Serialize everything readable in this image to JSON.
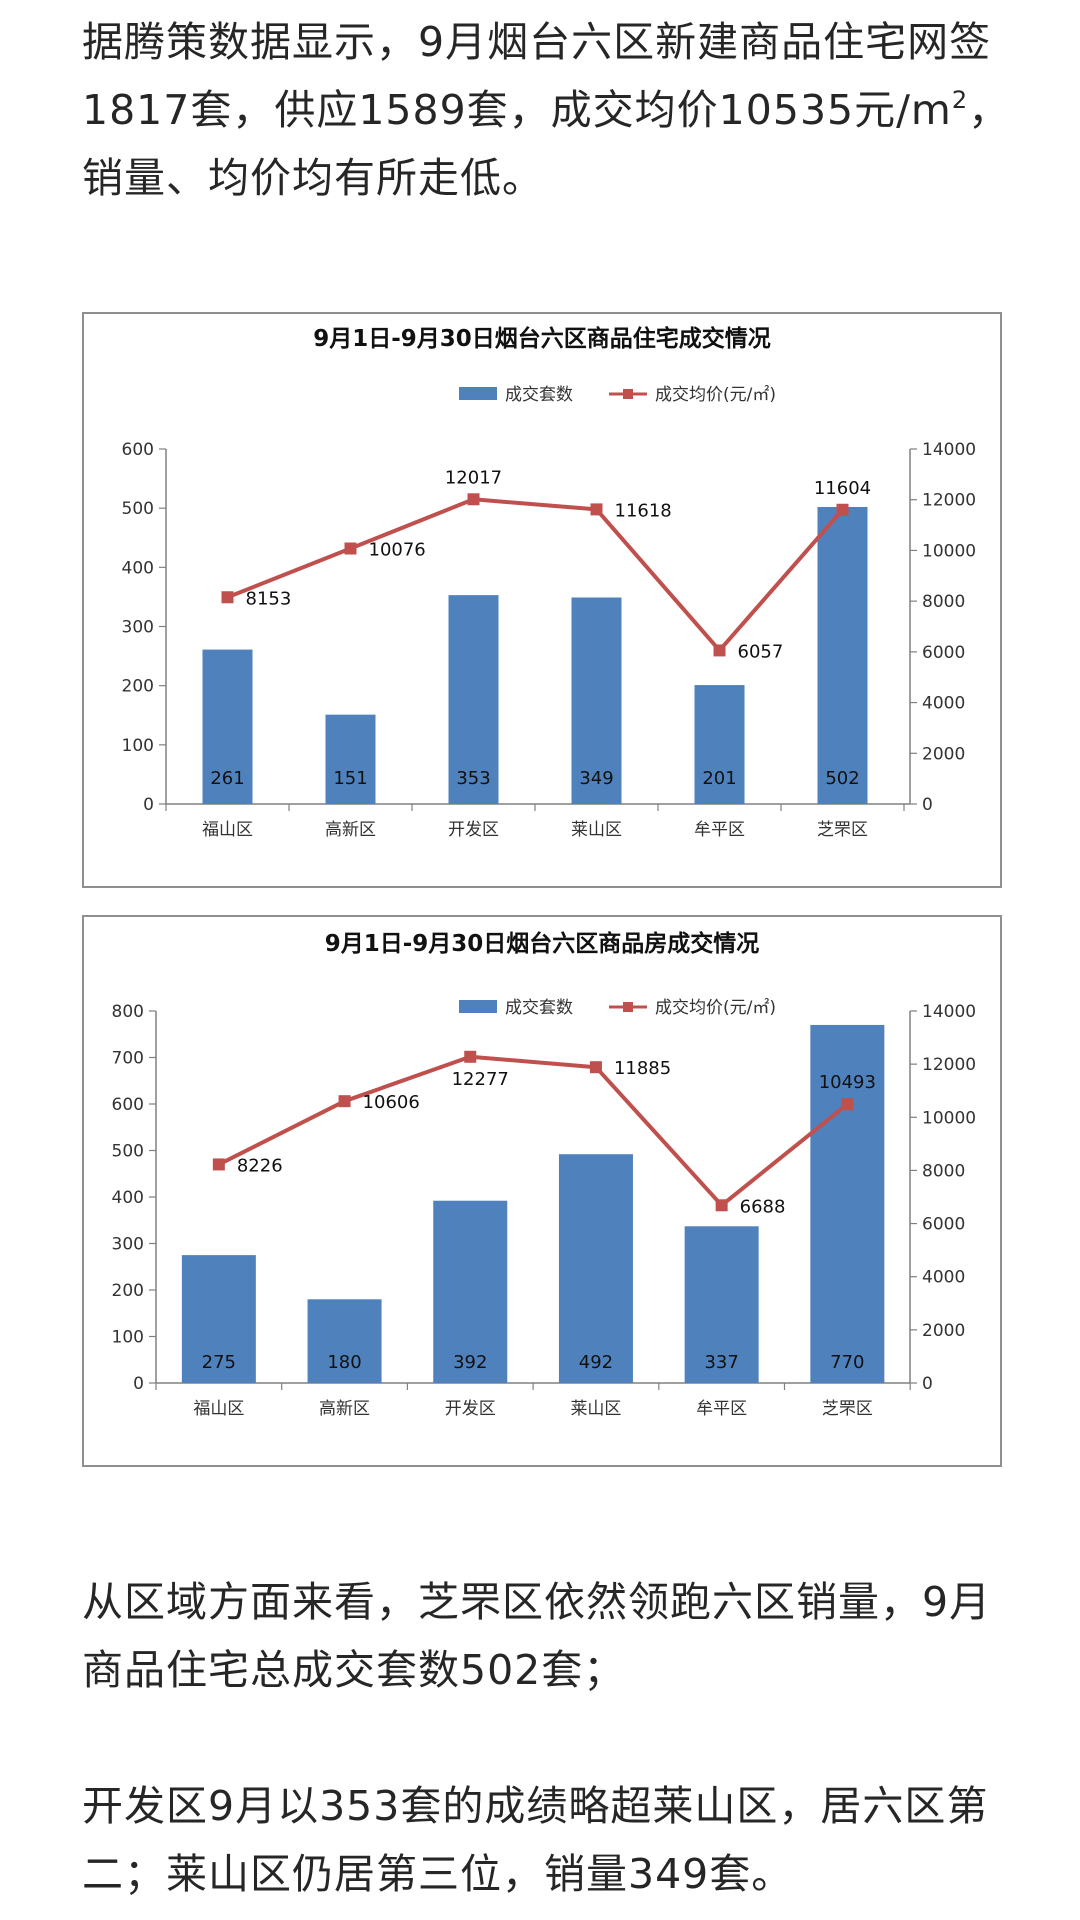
{
  "paragraphs": {
    "p1_main": "据腾策数据显示，9月烟台六区新建商品住宅网签1817套，供应1589套，成交均价10535元/m",
    "p1_sup": "2",
    "p1_tail": "，销量、均价均有所走低。",
    "p2": "从区域方面来看，芝罘区依然领跑六区销量，9月商品住宅总成交套数502套；",
    "p3": "开发区9月以353套的成绩略超莱山区，居六区第二；莱山区仍居第三位，销量349套。"
  },
  "chart_data": [
    {
      "type": "bar",
      "title": "9月1日-9月30日烟台六区商品住宅成交情况",
      "categories": [
        "福山区",
        "高新区",
        "开发区",
        "莱山区",
        "牟平区",
        "芝罘区"
      ],
      "series": [
        {
          "name": "成交套数",
          "type": "bar",
          "axis": "left",
          "color": "#4F81BD",
          "values": [
            261,
            151,
            353,
            349,
            201,
            502
          ],
          "labels": [
            "261",
            "151",
            "353",
            "349",
            "201",
            "502"
          ]
        },
        {
          "name": "成交均价(元/㎡)",
          "type": "line",
          "axis": "right",
          "color": "#C0504D",
          "values": [
            8153,
            10076,
            12017,
            11618,
            6057,
            11604
          ],
          "labels": [
            "8153",
            "10076",
            "12017",
            "11618",
            "6057",
            "11604"
          ]
        }
      ],
      "y_left": {
        "min": 0,
        "max": 600,
        "ticks": [
          "0",
          "100",
          "200",
          "300",
          "400",
          "500",
          "600"
        ]
      },
      "y_right": {
        "min": 0,
        "max": 14000,
        "ticks": [
          "0",
          "2000",
          "4000",
          "6000",
          "8000",
          "10000",
          "12000",
          "14000"
        ]
      },
      "legend": "top-center",
      "grid": false
    },
    {
      "type": "bar",
      "title": "9月1日-9月30日烟台六区商品房成交情况",
      "categories": [
        "福山区",
        "高新区",
        "开发区",
        "莱山区",
        "牟平区",
        "芝罘区"
      ],
      "series": [
        {
          "name": "成交套数",
          "type": "bar",
          "axis": "left",
          "color": "#4F81BD",
          "values": [
            275,
            180,
            392,
            492,
            337,
            770
          ],
          "labels": [
            "275",
            "180",
            "392",
            "492",
            "337",
            "770"
          ]
        },
        {
          "name": "成交均价(元/㎡)",
          "type": "line",
          "axis": "right",
          "color": "#C0504D",
          "values": [
            8226,
            10606,
            12277,
            11885,
            6688,
            10493
          ],
          "labels": [
            "8226",
            "10606",
            "12277",
            "11885",
            "6688",
            "10493"
          ]
        }
      ],
      "y_left": {
        "min": 0,
        "max": 800,
        "ticks": [
          "0",
          "100",
          "200",
          "300",
          "400",
          "500",
          "600",
          "700",
          "800"
        ]
      },
      "y_right": {
        "min": 0,
        "max": 14000,
        "ticks": [
          "0",
          "2000",
          "4000",
          "6000",
          "8000",
          "10000",
          "12000",
          "14000"
        ]
      },
      "legend": "top-center",
      "grid": false
    }
  ]
}
